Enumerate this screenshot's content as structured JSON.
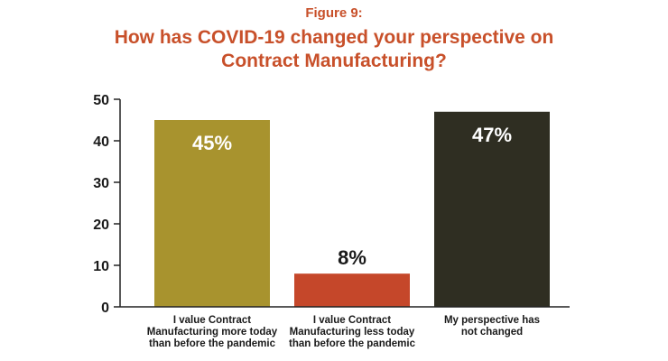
{
  "figure_label": "Figure 9:",
  "title_lines": [
    "How has COVID-19 changed your perspective on",
    "Contract Manufacturing?"
  ],
  "colors": {
    "title": "#c8502a",
    "bar1": "#a8932e",
    "bar2": "#c5472a",
    "bar3": "#2f2e22",
    "axis": "#222222"
  },
  "chart_data": {
    "type": "bar",
    "title": "How has COVID-19 changed your perspective on Contract Manufacturing?",
    "categories": [
      [
        "I value Contract",
        "Manufacturing more today",
        "than before the pandemic"
      ],
      [
        "I value Contract",
        "Manufacturing less today",
        "than before the pandemic"
      ],
      [
        "My perspective has",
        "not changed"
      ]
    ],
    "values": [
      45,
      8,
      47
    ],
    "data_labels": [
      "45%",
      "8%",
      "47%"
    ],
    "label_inside": [
      true,
      false,
      true
    ],
    "ylim": [
      0,
      50
    ],
    "yticks": [
      0,
      10,
      20,
      30,
      40,
      50
    ],
    "grid": false
  }
}
